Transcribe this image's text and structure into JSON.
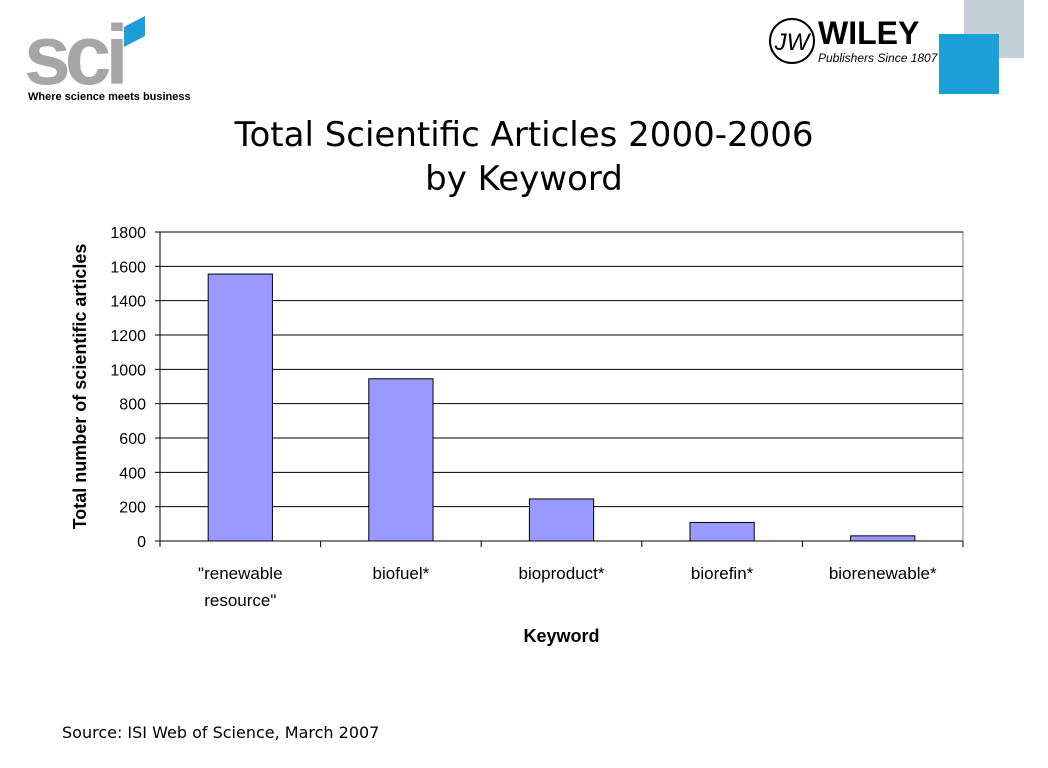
{
  "header": {
    "sci_logo_text": "sci",
    "sci_tagline": "Where science meets business",
    "wiley_name": "WILEY",
    "wiley_tagline": "Publishers Since 1807"
  },
  "title_line1": "Total Scientific Articles 2000-2006",
  "title_line2": "by Keyword",
  "source": "Source: ISI Web of Science, March 2007",
  "colors": {
    "bar_fill": "#9999ff",
    "bar_stroke": "#000000",
    "sci_gray": "#a6a6a6",
    "sci_accent": "#1c9ed6",
    "deco_gray": "#c3d0d8",
    "deco_blue": "#1c9ed6"
  },
  "chart_data": {
    "type": "bar",
    "title": "",
    "xlabel": "Keyword",
    "ylabel": "Total number of scientific articles",
    "categories": [
      [
        "\"renewable",
        "resource\""
      ],
      [
        "biofuel*"
      ],
      [
        "bioproduct*"
      ],
      [
        "biorefin*"
      ],
      [
        "biorenewable*"
      ]
    ],
    "values": [
      1555,
      945,
      245,
      108,
      30
    ],
    "ylim": [
      0,
      1800
    ],
    "yticks": [
      0,
      200,
      400,
      600,
      800,
      1000,
      1200,
      1400,
      1600,
      1800
    ],
    "grid": true,
    "legend": "none"
  }
}
